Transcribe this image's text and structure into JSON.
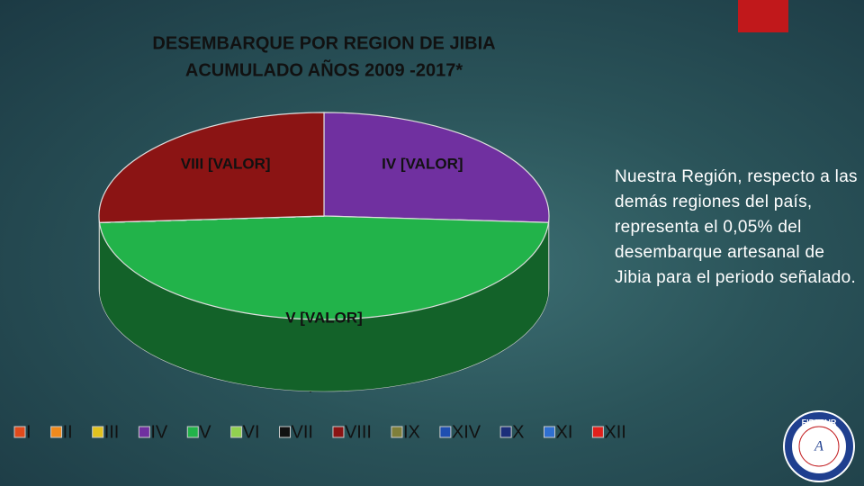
{
  "chart_data": {
    "type": "pie",
    "title": "DESEMBARQUE  POR REGION DE JIBIA",
    "subtitle": "ACUMULADO AÑOS 2009 -2017*",
    "categories": [
      "I",
      "II",
      "III",
      "IV",
      "V",
      "VI",
      "VII",
      "VIII",
      "IX",
      "XIV",
      "X",
      "XI",
      "XII"
    ],
    "values": [
      0,
      0,
      0,
      26,
      48,
      0,
      0,
      26,
      0,
      0,
      0,
      0,
      0
    ],
    "value_labels": [
      null,
      null,
      null,
      "IV [VALOR]",
      "V [VALOR]",
      null,
      null,
      "VIII [VALOR]",
      null,
      null,
      null,
      null,
      null
    ],
    "colors": [
      "#e04a1c",
      "#f08a1c",
      "#e2c21e",
      "#7030a0",
      "#22b34a",
      "#92d050",
      "#111111",
      "#8b1414",
      "#7f7f3a",
      "#1f4fb0",
      "#1c2f7a",
      "#2f6fd0",
      "#e0201c"
    ]
  },
  "note": "Nuestra Región, respecto a las demás regiones del país, representa el 0,05% del desembarque artesanal de Jibia para el periodo señalado.",
  "logo": "FIPASUR"
}
